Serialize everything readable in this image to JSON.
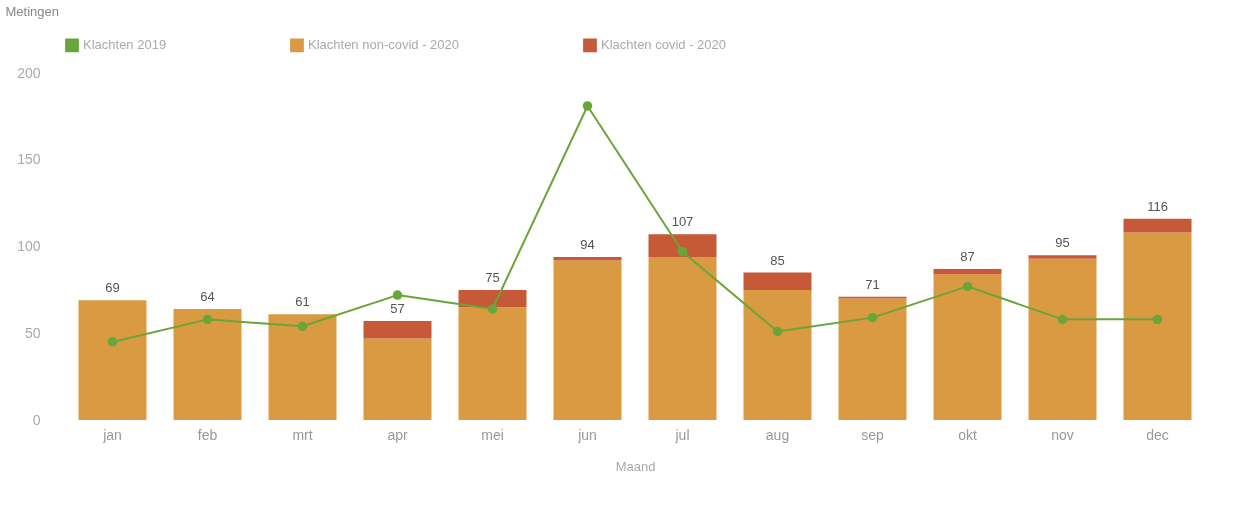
{
  "chart_data": {
    "type": "bar",
    "stacked": true,
    "ylabel": "Metingen",
    "xlabel": "Maand",
    "legend": "top",
    "grid": false,
    "marker": "circle",
    "line_style": "solid",
    "categories": [
      "jan",
      "feb",
      "mrt",
      "apr",
      "mei",
      "jun",
      "jul",
      "aug",
      "sep",
      "okt",
      "nov",
      "dec"
    ],
    "ylim": [
      0,
      200
    ],
    "yticks": [
      0,
      50,
      100,
      150,
      200
    ],
    "series": [
      {
        "name": "Klachten 2019",
        "type": "line",
        "color": "#6aa53a",
        "values": [
          45,
          58,
          54,
          72,
          64,
          181,
          97,
          51,
          59,
          77,
          58,
          58
        ]
      },
      {
        "name": "Klachten non-covid - 2020",
        "color": "#d99a42",
        "values": [
          69,
          64,
          61,
          47,
          65,
          92,
          94,
          75,
          70,
          84,
          93,
          108
        ]
      },
      {
        "name": "Klachten covid - 2020",
        "color": "#c65a38",
        "values": [
          0,
          0,
          0,
          10,
          10,
          2,
          13,
          10,
          1,
          3,
          2,
          8
        ]
      }
    ],
    "totals": [
      "69",
      "64",
      "61",
      "57",
      "75",
      "94",
      "107",
      "85",
      "71",
      "87",
      "95",
      "116"
    ]
  }
}
